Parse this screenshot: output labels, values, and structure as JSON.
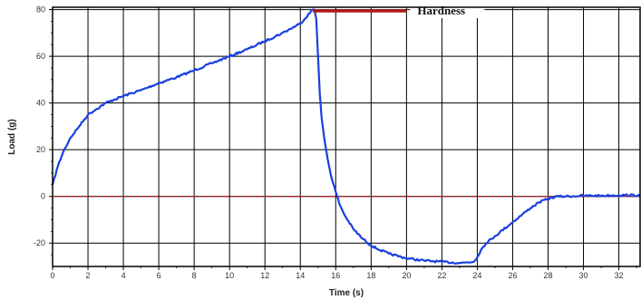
{
  "chart_data": {
    "type": "line",
    "title": "",
    "xlabel": "Time (s)",
    "ylabel": "Load (g)",
    "xlim": [
      0,
      33.2
    ],
    "ylim": [
      -30,
      81
    ],
    "x_ticks": [
      0,
      2,
      4,
      6,
      8,
      10,
      12,
      14,
      16,
      18,
      20,
      22,
      24,
      26,
      28,
      30,
      32
    ],
    "y_ticks": [
      -20,
      0,
      20,
      40,
      60,
      80
    ],
    "grid": true,
    "legend": "none",
    "series": [
      {
        "color": "#1a3fe0",
        "x": [
          0,
          0.3,
          0.6,
          1,
          1.5,
          2,
          2.5,
          3,
          3.5,
          4,
          5,
          6,
          7,
          8,
          9,
          10,
          11,
          12,
          13,
          14,
          14.7,
          14.8,
          14.9,
          15,
          15.1,
          15.2,
          15.35,
          15.5,
          15.65,
          15.8,
          16,
          16.2,
          16.5,
          17,
          17.5,
          18,
          18.5,
          19,
          20,
          21,
          22,
          23,
          23.8,
          24,
          24.2,
          24.5,
          25,
          26,
          27,
          27.5,
          28,
          28.5,
          29,
          30,
          31,
          32,
          33.2
        ],
        "y": [
          5,
          13,
          19,
          25,
          30,
          35,
          37.5,
          40,
          41.5,
          43,
          45.5,
          48.5,
          51,
          54,
          57,
          60,
          63,
          66.5,
          70,
          74,
          80,
          80,
          76,
          60,
          44,
          34,
          25,
          18,
          12,
          7,
          2,
          -3,
          -8,
          -14,
          -18,
          -21,
          -23,
          -24.5,
          -26.5,
          -27.5,
          -28,
          -28.5,
          -28,
          -26,
          -23,
          -20,
          -17,
          -11,
          -5,
          -2.5,
          -1,
          0,
          0,
          0.3,
          0.3,
          0.5,
          0.5
        ]
      }
    ],
    "reference_lines": [
      {
        "y": 0,
        "color": "#c42020",
        "style": "dashed"
      }
    ],
    "annotations": [
      {
        "text": "Hardness",
        "line_x": [
          14.7,
          20
        ],
        "line_y": 81,
        "color": "#b01818"
      }
    ]
  }
}
